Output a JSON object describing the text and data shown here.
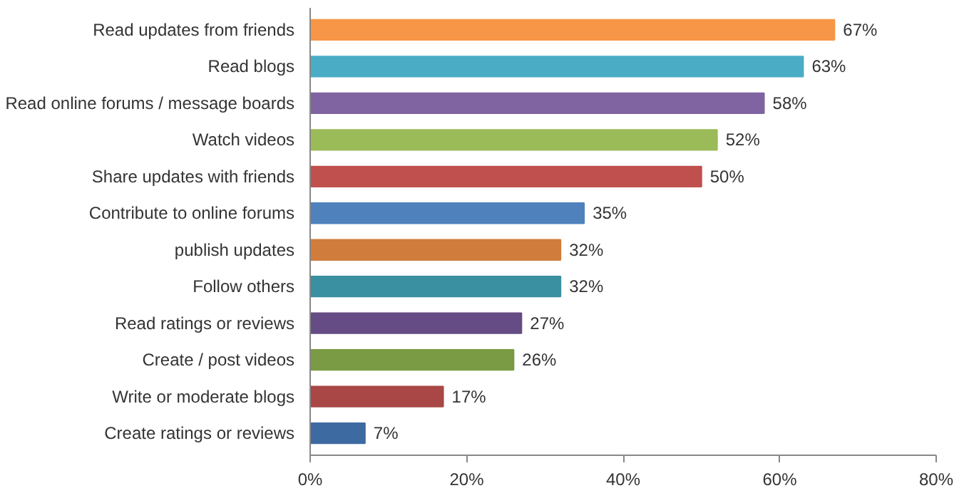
{
  "chart_data": {
    "type": "bar",
    "orientation": "horizontal",
    "categories": [
      "Read updates from friends",
      "Read blogs",
      "Read online forums / message boards",
      "Watch videos",
      "Share updates with friends",
      "Contribute to online forums",
      "publish updates",
      "Follow others",
      "Read ratings or reviews",
      "Create / post videos",
      "Write or moderate blogs",
      "Create ratings or reviews"
    ],
    "values": [
      67,
      63,
      58,
      52,
      50,
      35,
      32,
      32,
      27,
      26,
      17,
      7
    ],
    "value_labels": [
      "67%",
      "63%",
      "58%",
      "52%",
      "50%",
      "35%",
      "32%",
      "32%",
      "27%",
      "26%",
      "17%",
      "7%"
    ],
    "colors": [
      "#f79646",
      "#4bacc6",
      "#8064a2",
      "#9bbb59",
      "#c0504d",
      "#4f81bd",
      "#d07c3c",
      "#3a8fa0",
      "#654c84",
      "#7a9a43",
      "#a84745",
      "#3d6aa0"
    ],
    "xlim": [
      0,
      80
    ],
    "xticks": [
      {
        "value": 0,
        "label": "0%"
      },
      {
        "value": 20,
        "label": "20%"
      },
      {
        "value": 40,
        "label": "40%"
      },
      {
        "value": 60,
        "label": "60%"
      },
      {
        "value": 80,
        "label": "80%"
      }
    ],
    "grid": false
  }
}
